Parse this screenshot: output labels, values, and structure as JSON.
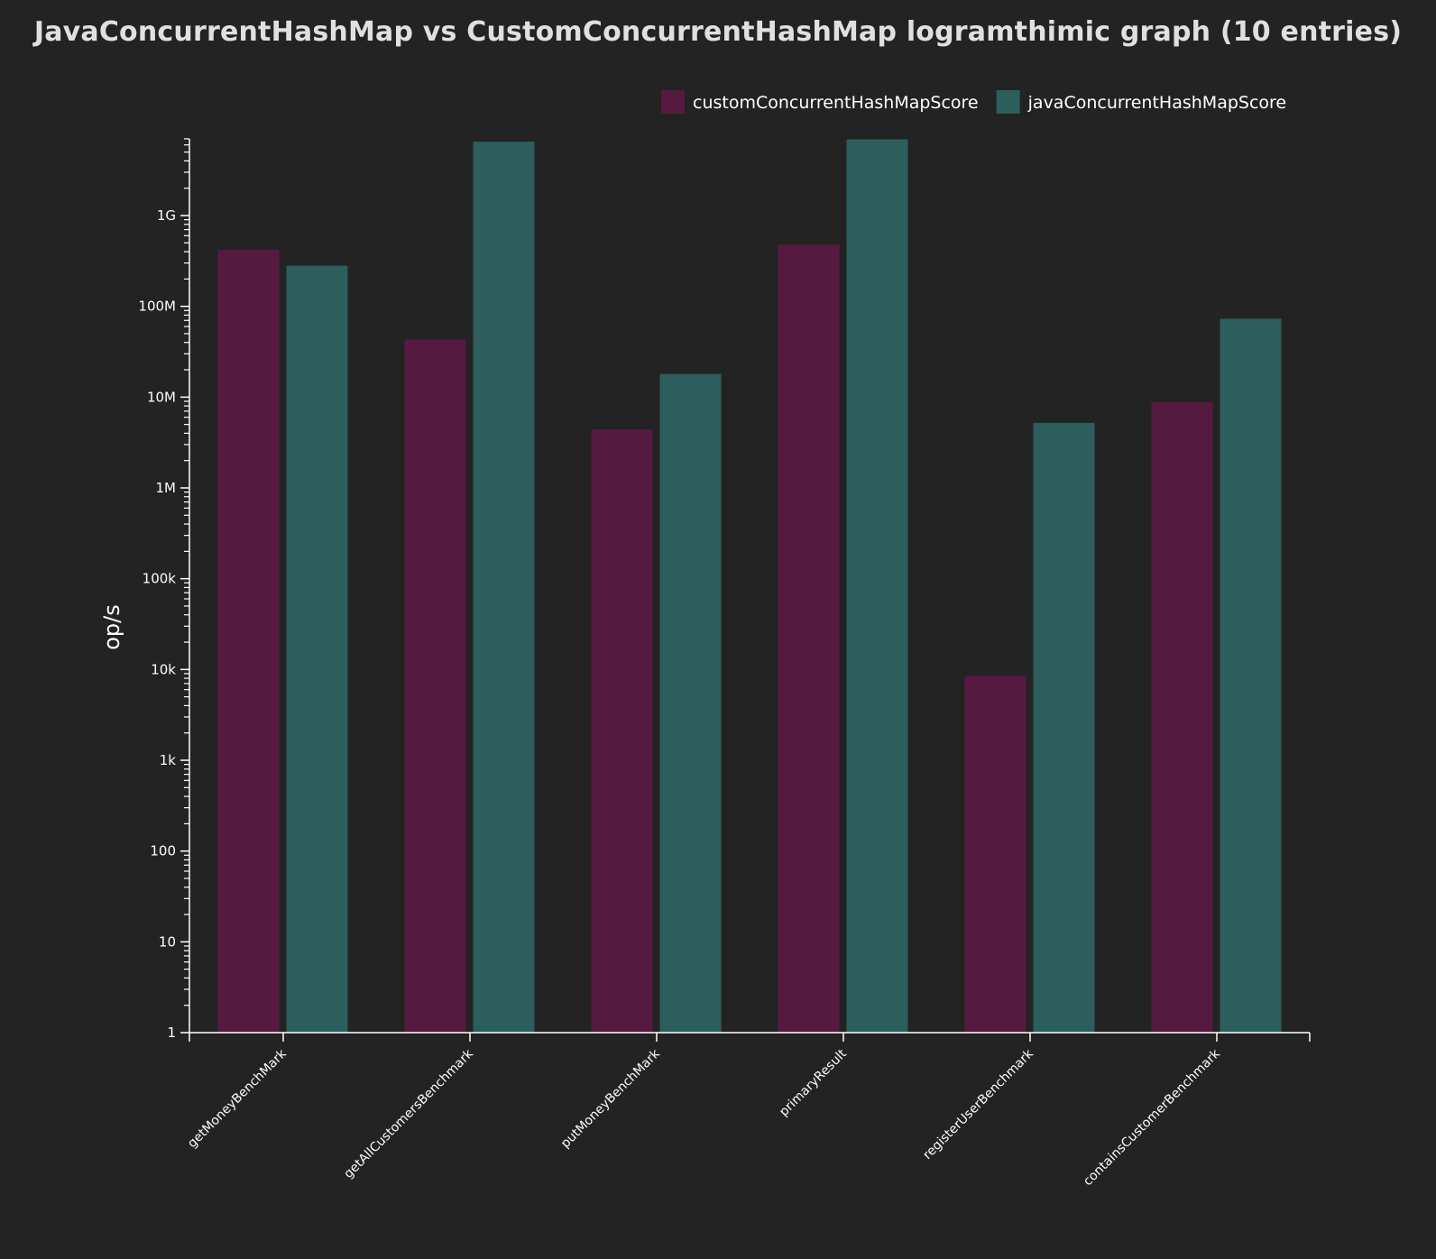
{
  "title": "JavaConcurrentHashMap vs CustomConcurrentHashMap logramthimic graph (10 entries)",
  "chart_data": {
    "type": "bar",
    "title": "JavaConcurrentHashMap vs CustomConcurrentHashMap logramthimic graph (10 entries)",
    "xlabel": "",
    "ylabel": "op/s",
    "yscale": "log",
    "ylim": [
      1,
      7000000000
    ],
    "yticks": [
      "1",
      "10",
      "100",
      "1k",
      "10k",
      "100k",
      "1M",
      "10M",
      "100M",
      "1G"
    ],
    "grid": false,
    "legend_position": "top-right",
    "categories": [
      "getMoneyBenchMark",
      "getAllCustomersBenchmark",
      "putMoneyBenchMark",
      "primaryResult",
      "registerUserBenchmark",
      "containsCustomerBenchmark"
    ],
    "series": [
      {
        "name": "customConcurrentHashMapScore",
        "color": "#561a40",
        "values": [
          420000000,
          43000000,
          4400000,
          480000000,
          8500,
          8800000
        ]
      },
      {
        "name": "javaConcurrentHashMapScore",
        "color": "#2d5e5e",
        "values": [
          280000000,
          6500000000,
          18000000,
          6900000000,
          5200000,
          73000000
        ]
      }
    ]
  }
}
